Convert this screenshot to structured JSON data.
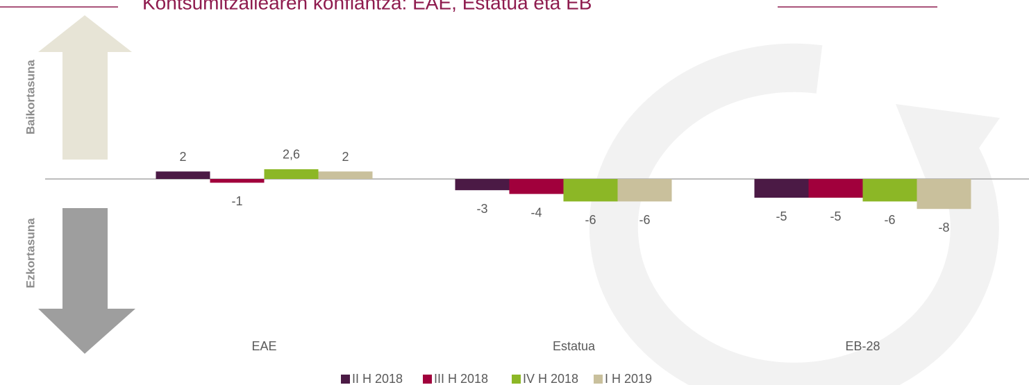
{
  "chart_data": {
    "type": "bar",
    "title": "Kontsumitzailearen konfiantza: EAE, Estatua eta EB",
    "y_labels": [
      "Baikortasuna",
      "Ezkortasuna"
    ],
    "categories": [
      "EAE",
      "Estatua",
      "EB-28"
    ],
    "series": [
      {
        "name": "II H 2018",
        "color": "#4b1a45",
        "values": [
          2,
          -3,
          -5
        ],
        "value_labels": [
          "2",
          "-3",
          "-5"
        ]
      },
      {
        "name": "III H 2018",
        "color": "#a1003c",
        "values": [
          -1,
          -4,
          -5
        ],
        "value_labels": [
          "-1",
          "-4",
          "-5"
        ]
      },
      {
        "name": "IV H 2018",
        "color": "#8cb726",
        "values": [
          2.6,
          -6,
          -6
        ],
        "value_labels": [
          "2,6",
          "-6",
          "-6"
        ]
      },
      {
        "name": "I H 2019",
        "color": "#c9c09c",
        "values": [
          2,
          -6,
          -8
        ],
        "value_labels": [
          "2",
          "-6",
          "-8"
        ]
      }
    ],
    "legend": "bottom"
  }
}
